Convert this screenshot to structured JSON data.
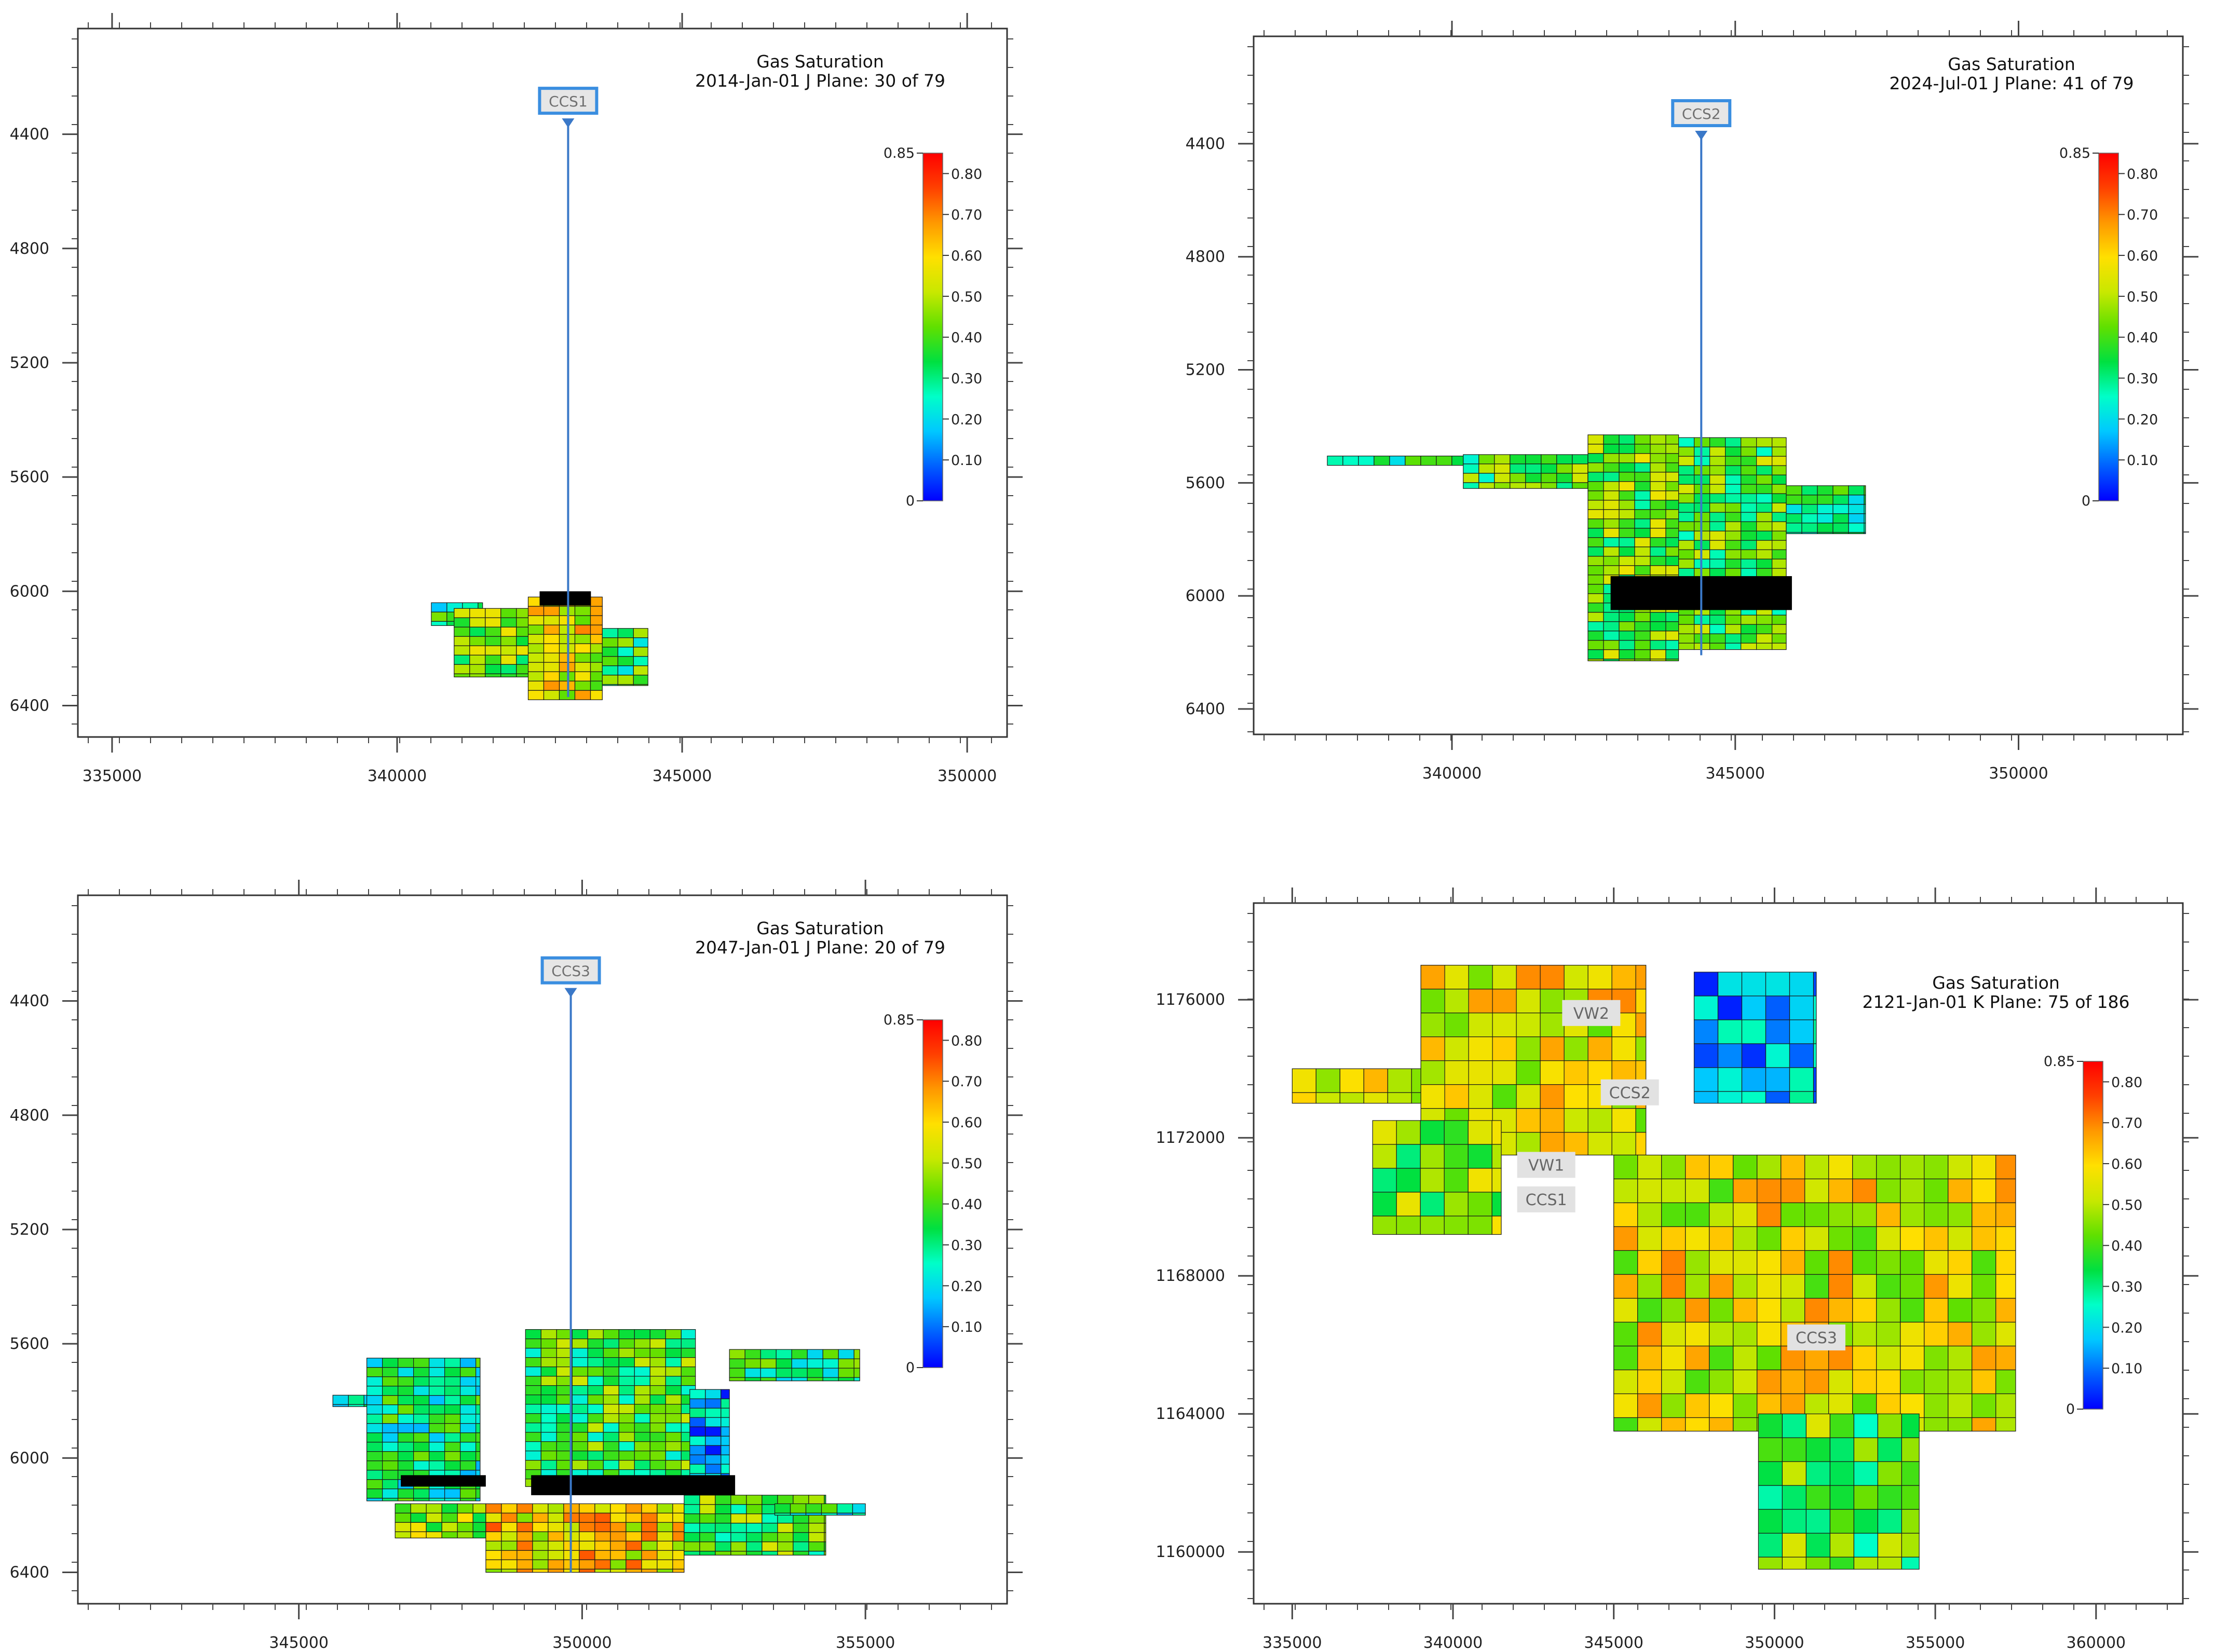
{
  "colors": {
    "colorbar": [
      "#0000ff",
      "#0060ff",
      "#00c8ff",
      "#00ffc8",
      "#00e040",
      "#60e000",
      "#c8e800",
      "#ffe000",
      "#ff9800",
      "#ff4000",
      "#ff0000"
    ],
    "well": "#3a78c8",
    "well_box_border": "#3a8ee0",
    "well_box_fill": "#e6e6e6",
    "well_label_fill": "#e2e2e2",
    "axis": "#444444",
    "plot_border": "#333333",
    "cell_outline": "#1a1a1a",
    "blocked_band": "#000000"
  },
  "chart_data": [
    {
      "type": "heatmap",
      "title": "Gas Saturation",
      "subtitle": "2014-Jan-01   J Plane: 30 of 79",
      "well_label": "CCS1",
      "xlim": [
        334400,
        350700
      ],
      "ylim": [
        4030,
        6510
      ],
      "xticks": [
        335000,
        340000,
        345000,
        350000
      ],
      "yticks": [
        4400,
        4800,
        5200,
        5600,
        6000,
        6400
      ],
      "x_tick_labels": [
        "335000",
        "340000",
        "345000",
        "350000"
      ],
      "y_tick_labels": [
        "4400",
        "4800",
        "5200",
        "5600",
        "6000",
        "6400"
      ],
      "colorbar": {
        "min": 0,
        "max": 0.85,
        "tick_labels": [
          "0.10",
          "0.20",
          "0.30",
          "0.40",
          "0.50",
          "0.60",
          "0.70",
          "0.80"
        ],
        "min_label": "0",
        "max_label": "0.85"
      },
      "well": {
        "x": 343000,
        "top": 4370,
        "bottom": 6370
      },
      "plume": [
        {
          "x0": 340600,
          "x1": 341500,
          "top": 6040,
          "bottom": 6120,
          "s": 0.32
        },
        {
          "x0": 341000,
          "x1": 342300,
          "top": 6060,
          "bottom": 6300,
          "s": 0.44
        },
        {
          "x0": 342300,
          "x1": 343600,
          "top": 6020,
          "bottom": 6380,
          "s": 0.55
        },
        {
          "x0": 343600,
          "x1": 344400,
          "top": 6130,
          "bottom": 6330,
          "s": 0.36
        }
      ],
      "black_bands": [
        {
          "x0": 342500,
          "x1": 343400,
          "top": 6000,
          "bottom": 6050
        }
      ]
    },
    {
      "type": "heatmap",
      "title": "Gas Saturation",
      "subtitle": "2024-Jul-01    J Plane: 41 of 79",
      "well_label": "CCS2",
      "xlim": [
        336500,
        352900
      ],
      "ylim": [
        4020,
        6490
      ],
      "xticks": [
        340000,
        345000,
        350000
      ],
      "yticks": [
        4400,
        4800,
        5200,
        5600,
        6000,
        6400
      ],
      "x_tick_labels": [
        "340000",
        "345000",
        "350000"
      ],
      "y_tick_labels": [
        "4400",
        "4800",
        "5200",
        "5600",
        "6000",
        "6400"
      ],
      "colorbar": {
        "min": 0,
        "max": 0.85,
        "tick_labels": [
          "0.10",
          "0.20",
          "0.30",
          "0.40",
          "0.50",
          "0.60",
          "0.70",
          "0.80"
        ],
        "min_label": "0",
        "max_label": "0.85"
      },
      "well": {
        "x": 344400,
        "top": 4380,
        "bottom": 6210
      },
      "plume": [
        {
          "x0": 337800,
          "x1": 340200,
          "top": 5505,
          "bottom": 5540,
          "s": 0.34
        },
        {
          "x0": 340200,
          "x1": 342400,
          "top": 5500,
          "bottom": 5620,
          "s": 0.38
        },
        {
          "x0": 342400,
          "x1": 344000,
          "top": 5430,
          "bottom": 6230,
          "s": 0.42
        },
        {
          "x0": 344000,
          "x1": 345900,
          "top": 5440,
          "bottom": 6190,
          "s": 0.4
        },
        {
          "x0": 345900,
          "x1": 347300,
          "top": 5610,
          "bottom": 5780,
          "s": 0.3
        }
      ],
      "black_bands": [
        {
          "x0": 342800,
          "x1": 346000,
          "top": 5930,
          "bottom": 6050
        }
      ]
    },
    {
      "type": "heatmap",
      "title": "Gas Saturation",
      "subtitle": "2047-Jan-01   J Plane: 20 of 79",
      "well_label": "CCS3",
      "xlim": [
        341100,
        357500
      ],
      "ylim": [
        4030,
        6510
      ],
      "xticks": [
        345000,
        350000,
        355000
      ],
      "yticks": [
        4400,
        4800,
        5200,
        5600,
        6000,
        6400
      ],
      "x_tick_labels": [
        "345000",
        "350000",
        "355000"
      ],
      "y_tick_labels": [
        "4400",
        "4800",
        "5200",
        "5600",
        "6000",
        "6400"
      ],
      "colorbar": {
        "min": 0,
        "max": 0.85,
        "tick_labels": [
          "0.10",
          "0.20",
          "0.30",
          "0.40",
          "0.50",
          "0.60",
          "0.70",
          "0.80"
        ],
        "min_label": "0",
        "max_label": "0.85"
      },
      "well": {
        "x": 349800,
        "top": 4380,
        "bottom": 6400
      },
      "plume": [
        {
          "x0": 345600,
          "x1": 346500,
          "top": 5780,
          "bottom": 5820,
          "s": 0.3
        },
        {
          "x0": 346200,
          "x1": 348200,
          "top": 5650,
          "bottom": 6150,
          "s": 0.3
        },
        {
          "x0": 346700,
          "x1": 348300,
          "top": 6160,
          "bottom": 6280,
          "s": 0.45
        },
        {
          "x0": 348300,
          "x1": 351800,
          "top": 6160,
          "bottom": 6400,
          "s": 0.6
        },
        {
          "x0": 351800,
          "x1": 354300,
          "top": 6130,
          "bottom": 6340,
          "s": 0.4
        },
        {
          "x0": 349000,
          "x1": 352000,
          "top": 5550,
          "bottom": 6100,
          "s": 0.38
        },
        {
          "x0": 351900,
          "x1": 352600,
          "top": 5760,
          "bottom": 6100,
          "s": 0.15
        },
        {
          "x0": 352600,
          "x1": 354900,
          "top": 5620,
          "bottom": 5730,
          "s": 0.33
        },
        {
          "x0": 353400,
          "x1": 355000,
          "top": 6160,
          "bottom": 6200,
          "s": 0.28
        }
      ],
      "black_bands": [
        {
          "x0": 346800,
          "x1": 348300,
          "top": 6060,
          "bottom": 6100
        },
        {
          "x0": 349100,
          "x1": 352700,
          "top": 6060,
          "bottom": 6130
        }
      ]
    },
    {
      "type": "heatmap",
      "title": "Gas Saturation",
      "subtitle": "2121-Jan-01   K Plane: 75 of 186",
      "xlim": [
        333800,
        362700
      ],
      "ylim": [
        1158500,
        1178800
      ],
      "xticks": [
        335000,
        340000,
        345000,
        350000,
        355000,
        360000
      ],
      "yticks": [
        1160000,
        1164000,
        1168000,
        1172000,
        1176000
      ],
      "x_tick_labels": [
        "335000",
        "340000",
        "345000",
        "350000",
        "355000",
        "360000"
      ],
      "y_tick_labels": [
        "1160000",
        "1164000",
        "1168000",
        "1172000",
        "1176000"
      ],
      "colorbar": {
        "min": 0,
        "max": 0.85,
        "tick_labels": [
          "0.10",
          "0.20",
          "0.30",
          "0.40",
          "0.50",
          "0.60",
          "0.70",
          "0.80"
        ],
        "min_label": "0",
        "max_label": "0.85"
      },
      "wells": [
        {
          "label": "VW2",
          "x": 344300,
          "y": 1175600
        },
        {
          "label": "CCS2",
          "x": 345500,
          "y": 1173300
        },
        {
          "label": "VW1",
          "x": 342900,
          "y": 1171200
        },
        {
          "label": "CCS1",
          "x": 342900,
          "y": 1170200
        },
        {
          "label": "CCS3",
          "x": 351300,
          "y": 1166200
        }
      ],
      "plume": [
        {
          "x0": 335000,
          "x1": 341000,
          "top": 1174000,
          "bottom": 1173000,
          "s": 0.5
        },
        {
          "x0": 339000,
          "x1": 346000,
          "top": 1177000,
          "bottom": 1171500,
          "s": 0.55
        },
        {
          "x0": 337500,
          "x1": 341500,
          "top": 1172500,
          "bottom": 1169200,
          "s": 0.45
        },
        {
          "x0": 347500,
          "x1": 351300,
          "top": 1176800,
          "bottom": 1173000,
          "s": 0.15
        },
        {
          "x0": 345000,
          "x1": 357500,
          "top": 1171500,
          "bottom": 1163500,
          "s": 0.55
        },
        {
          "x0": 349500,
          "x1": 354500,
          "top": 1164000,
          "bottom": 1159500,
          "s": 0.4
        }
      ],
      "black_bands": []
    }
  ]
}
